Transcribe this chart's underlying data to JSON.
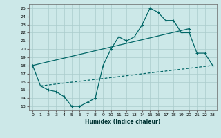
{
  "title": "",
  "xlabel": "Humidex (Indice chaleur)",
  "ylabel": "",
  "bg_color": "#cce8e8",
  "grid_color": "#aacccc",
  "line_color": "#006666",
  "xlim": [
    -0.5,
    23.5
  ],
  "ylim": [
    12.5,
    25.5
  ],
  "yticks": [
    13,
    14,
    15,
    16,
    17,
    18,
    19,
    20,
    21,
    22,
    23,
    24,
    25
  ],
  "xticks": [
    0,
    1,
    2,
    3,
    4,
    5,
    6,
    7,
    8,
    9,
    10,
    11,
    12,
    13,
    14,
    15,
    16,
    17,
    18,
    19,
    20,
    21,
    22,
    23
  ],
  "series1_x": [
    0,
    1,
    2,
    3,
    4,
    5,
    6,
    7,
    8,
    9,
    10,
    11,
    12,
    13,
    14,
    15,
    16,
    17,
    18,
    19,
    20,
    21,
    22,
    23
  ],
  "series1_y": [
    18,
    15.5,
    15,
    14.8,
    14.2,
    13.0,
    13.0,
    13.5,
    14.0,
    18.0,
    20.0,
    21.5,
    21.0,
    21.5,
    23.0,
    25.0,
    24.5,
    23.5,
    23.5,
    22.0,
    22.0,
    19.5,
    19.5,
    18.0
  ],
  "series2_x": [
    0,
    20
  ],
  "series2_y": [
    18.0,
    22.5
  ],
  "series3_x": [
    1,
    23
  ],
  "series3_y": [
    15.5,
    18.0
  ]
}
